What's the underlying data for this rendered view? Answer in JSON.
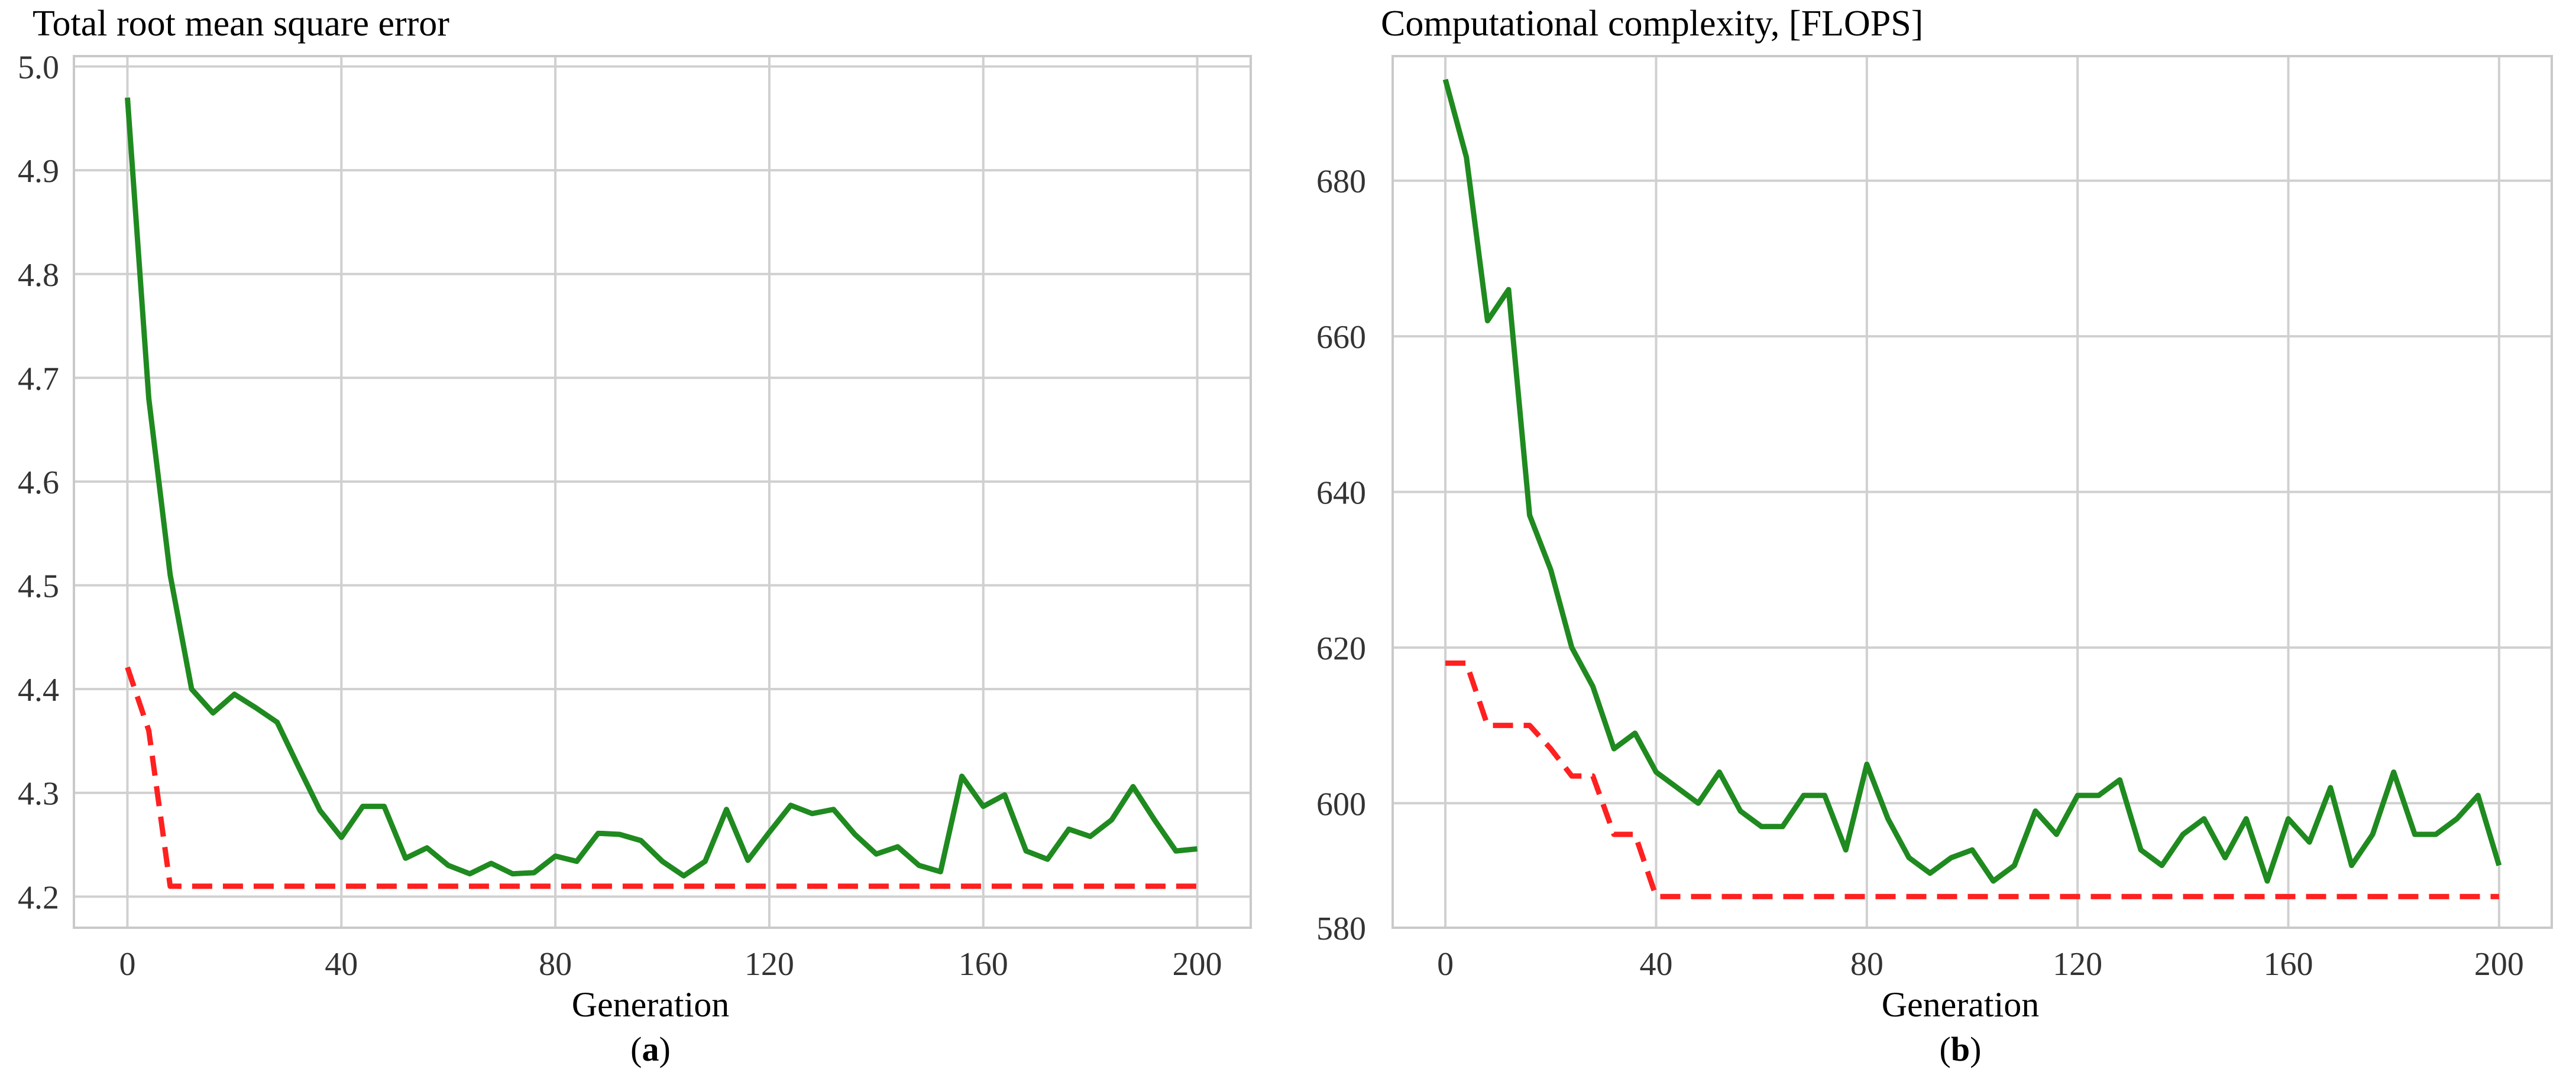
{
  "chart_data": [
    {
      "type": "line",
      "title": "Total root mean square error",
      "xlabel": "Generation",
      "ylabel": "",
      "sublabel": "a",
      "xlim": [
        -10,
        210
      ],
      "ylim": [
        4.17,
        5.01
      ],
      "xticks": [
        0,
        40,
        80,
        120,
        160,
        200
      ],
      "yticks": [
        4.2,
        4.3,
        4.4,
        4.5,
        4.6,
        4.7,
        4.8,
        4.9,
        5.0
      ],
      "ytick_labels": [
        "4.2",
        "4.3",
        "4.4",
        "4.5",
        "4.6",
        "4.7",
        "4.8",
        "4.9",
        "5.0"
      ],
      "grid": true,
      "series": [
        {
          "color": "#1f8a1f",
          "dash": "solid",
          "x": [
            0,
            4,
            8,
            12,
            16,
            20,
            24,
            28,
            32,
            36,
            40,
            44,
            48,
            52,
            56,
            60,
            64,
            68,
            72,
            76,
            80,
            84,
            88,
            92,
            96,
            100,
            104,
            108,
            112,
            116,
            120,
            124,
            128,
            132,
            136,
            140,
            144,
            148,
            152,
            156,
            160,
            164,
            168,
            172,
            176,
            180,
            184,
            188,
            192,
            196,
            200
          ],
          "y": [
            4.97,
            4.68,
            4.51,
            4.4,
            4.377,
            4.395,
            4.382,
            4.368,
            4.325,
            4.283,
            4.257,
            4.287,
            4.287,
            4.237,
            4.247,
            4.23,
            4.222,
            4.232,
            4.222,
            4.223,
            4.239,
            4.234,
            4.261,
            4.26,
            4.254,
            4.234,
            4.22,
            4.234,
            4.284,
            4.235,
            4.262,
            4.288,
            4.28,
            4.284,
            4.26,
            4.241,
            4.248,
            4.23,
            4.224,
            4.316,
            4.287,
            4.298,
            4.244,
            4.236,
            4.265,
            4.258,
            4.274,
            4.306,
            4.274,
            4.244,
            4.246
          ]
        },
        {
          "color": "#ff2020",
          "dash": "dashed",
          "x": [
            0,
            4,
            8,
            12,
            20,
            40,
            80,
            120,
            160,
            200
          ],
          "y": [
            4.421,
            4.36,
            4.21,
            4.21,
            4.21,
            4.21,
            4.21,
            4.21,
            4.21,
            4.21
          ]
        }
      ]
    },
    {
      "type": "line",
      "title": "Computational complexity, [FLOPS]",
      "xlabel": "Generation",
      "ylabel": "",
      "sublabel": "b",
      "xlim": [
        -10,
        210
      ],
      "ylim": [
        584,
        696
      ],
      "xticks": [
        0,
        40,
        80,
        120,
        160,
        200
      ],
      "yticks": [
        600,
        620,
        640,
        660,
        680
      ],
      "ytick_labels": [
        "600",
        "620",
        "640",
        "660",
        "680"
      ],
      "ymin_label": "580",
      "grid": true,
      "series": [
        {
          "color": "#1f8a1f",
          "dash": "solid",
          "x": [
            0,
            4,
            8,
            12,
            16,
            20,
            24,
            28,
            32,
            36,
            40,
            44,
            48,
            52,
            56,
            60,
            64,
            68,
            72,
            76,
            80,
            84,
            88,
            92,
            96,
            100,
            104,
            108,
            112,
            116,
            120,
            124,
            128,
            132,
            136,
            140,
            144,
            148,
            152,
            156,
            160,
            164,
            168,
            172,
            176,
            180,
            184,
            188,
            192,
            196,
            200
          ],
          "y": [
            693,
            683,
            662,
            666,
            637,
            630,
            620,
            615,
            607,
            609,
            604,
            602,
            600,
            604,
            599,
            597,
            597,
            601,
            601,
            594,
            605,
            598,
            593,
            591,
            593,
            594,
            590,
            592,
            599,
            596,
            601,
            601,
            603,
            594,
            592,
            596,
            598,
            593,
            598,
            590,
            598,
            595,
            602,
            592,
            596,
            604,
            596,
            596,
            598,
            601,
            592
          ],
          "step": false
        },
        {
          "color": "#ff2020",
          "dash": "dashed",
          "x": [
            0,
            4,
            8,
            12,
            16,
            20,
            24,
            28,
            32,
            36,
            40,
            44,
            200
          ],
          "y": [
            618,
            618,
            610,
            610,
            610,
            607,
            603.5,
            603.5,
            596,
            596,
            588,
            588,
            588
          ],
          "step": true
        }
      ]
    }
  ]
}
